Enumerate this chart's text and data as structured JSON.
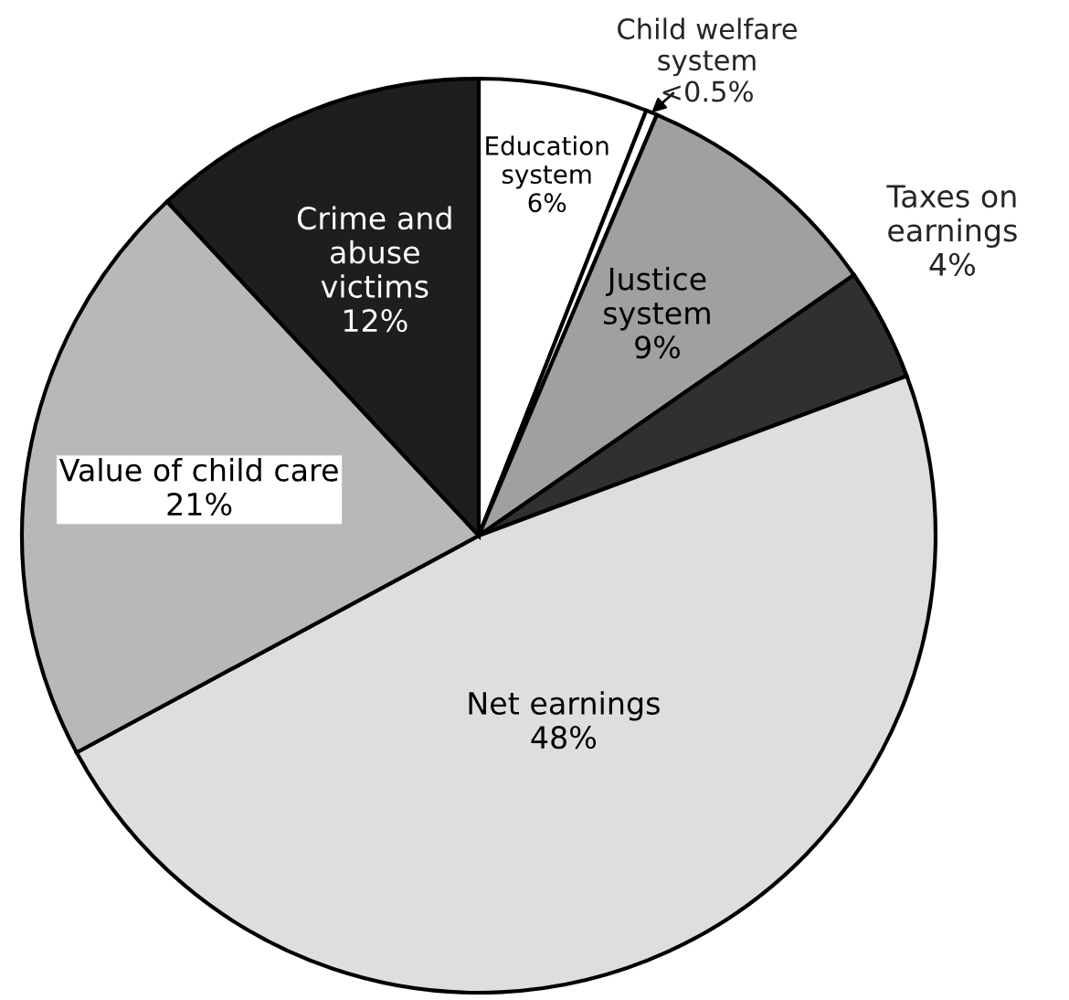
{
  "chart_data": {
    "type": "pie",
    "categories": [
      "Education\nsystem",
      "Child welfare\nsystem",
      "Justice\nsystem",
      "Taxes on\nearnings",
      "Net earnings",
      "Value of child care",
      "Crime and\nabuse\nvictims"
    ],
    "values": [
      6,
      0.4,
      9,
      4,
      48,
      21,
      12
    ],
    "value_labels": [
      "6%",
      "<0.5%",
      "9%",
      "4%",
      "48%",
      "21%",
      "12%"
    ],
    "colors": [
      "#ffffff",
      "#ffffff",
      "#a0a0a0",
      "#303030",
      "#dedede",
      "#b8b8b8",
      "#1e1e1e"
    ]
  }
}
